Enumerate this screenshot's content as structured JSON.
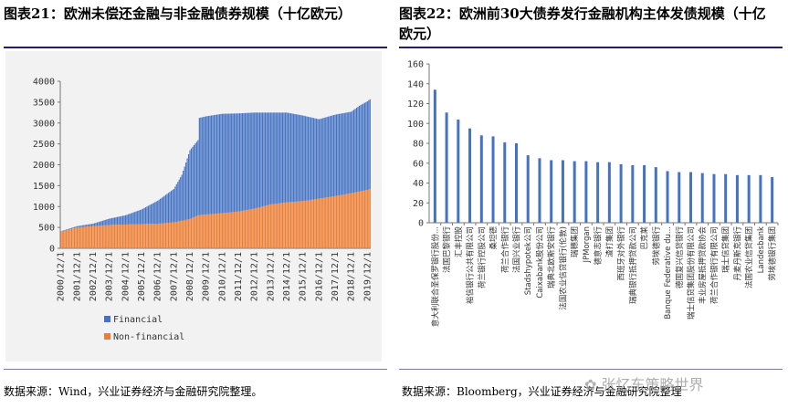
{
  "left_panel": {
    "title": "图表21：欧洲未偿还金融与非金融债券规模（十亿欧元）",
    "source": "数据来源：Wind，兴业证券经济与金融研究院整理。"
  },
  "right_panel": {
    "title": "图表22：欧洲前30大债券发行金融机构主体发债规模（十亿欧元）",
    "source": "数据来源：Bloomberg，兴业证券经济与金融研究院整理"
  },
  "watermark": "张忆东策略世界",
  "colors": {
    "financial": "#4472c4",
    "non_financial": "#ed7d31",
    "bar": "#4472c4",
    "rule": "#1f1f6b"
  },
  "chart_data": [
    {
      "type": "bar",
      "stacked": true,
      "x_tick_labels": [
        "2000/12/1",
        "2001/12/1",
        "2002/12/1",
        "2003/12/1",
        "2004/12/1",
        "2005/12/1",
        "2006/12/1",
        "2007/12/1",
        "2008/12/1",
        "2009/12/1",
        "2010/12/1",
        "2011/12/1",
        "2012/12/1",
        "2013/12/1",
        "2014/12/1",
        "2015/12/1",
        "2016/12/1",
        "2017/12/1",
        "2018/12/1",
        "2019/12/1"
      ],
      "x_start": "2000-12",
      "x_end": "2020-02",
      "ylim": [
        0,
        4000
      ],
      "y_ticks": [
        0,
        500,
        1000,
        1500,
        2000,
        2500,
        3000,
        3500,
        4000
      ],
      "legend": [
        "Financial",
        "Non-financial"
      ],
      "legend_position": "bottom-left",
      "grid": false,
      "series": [
        {
          "name": "Financial",
          "points": [
            [
              "2000-12",
              10
            ],
            [
              "2001-12",
              30
            ],
            [
              "2002-12",
              60
            ],
            [
              "2003-12",
              150
            ],
            [
              "2004-12",
              220
            ],
            [
              "2005-12",
              350
            ],
            [
              "2006-12",
              550
            ],
            [
              "2007-12",
              800
            ],
            [
              "2008-06",
              1100
            ],
            [
              "2008-12",
              1650
            ],
            [
              "2009-06",
              1800
            ],
            [
              "2009-07",
              2330
            ],
            [
              "2009-12",
              2350
            ],
            [
              "2010-12",
              2380
            ],
            [
              "2011-12",
              2350
            ],
            [
              "2012-12",
              2300
            ],
            [
              "2013-12",
              2200
            ],
            [
              "2014-12",
              2150
            ],
            [
              "2015-12",
              2050
            ],
            [
              "2016-12",
              1900
            ],
            [
              "2017-12",
              1950
            ],
            [
              "2018-12",
              1950
            ],
            [
              "2019-06",
              2050
            ],
            [
              "2019-12",
              2120
            ],
            [
              "2020-02",
              2150
            ]
          ]
        },
        {
          "name": "Non-financial",
          "points": [
            [
              "2000-12",
              400
            ],
            [
              "2001-12",
              500
            ],
            [
              "2002-12",
              530
            ],
            [
              "2003-12",
              560
            ],
            [
              "2004-12",
              570
            ],
            [
              "2005-12",
              580
            ],
            [
              "2006-12",
              590
            ],
            [
              "2007-12",
              620
            ],
            [
              "2008-12",
              700
            ],
            [
              "2009-06",
              790
            ],
            [
              "2009-12",
              810
            ],
            [
              "2010-12",
              840
            ],
            [
              "2011-12",
              880
            ],
            [
              "2012-12",
              950
            ],
            [
              "2013-12",
              1050
            ],
            [
              "2014-12",
              1100
            ],
            [
              "2015-12",
              1130
            ],
            [
              "2016-12",
              1190
            ],
            [
              "2017-12",
              1250
            ],
            [
              "2018-12",
              1320
            ],
            [
              "2019-12",
              1400
            ],
            [
              "2020-02",
              1420
            ]
          ]
        }
      ]
    },
    {
      "type": "bar",
      "ylim": [
        0,
        160
      ],
      "y_ticks": [
        0,
        20,
        40,
        60,
        80,
        100,
        120,
        140,
        160
      ],
      "grid": false,
      "categories": [
        "意大利联合圣保罗银行股份...",
        "法国巴黎银行",
        "汇丰控股",
        "裕信银行公共有限公司",
        "荷兰银行控股公司",
        "桑坦德",
        "荷兰合作银行",
        "法国兴业银行",
        "Stadshypotek公司",
        "Caixabank股份公司",
        "瑞典北欧斯安银行",
        "法国农业信贷银行(伦敦)",
        "瑞穗集团",
        "JPMorgan",
        "德意志银行",
        "渣打集团",
        "西班牙对外银行",
        "瑞典银行抵押贷款公司",
        "巴克莱",
        "劳埃德银行",
        "Banque Federative du...",
        "德国复兴信贷银行",
        "瑞士信贷集团股份有限公司",
        "丰业房屋抵押贷款协会",
        "荷兰合作银行有限公司",
        "瑞士信贷集团",
        "丹麦丹斯克银行",
        "法国农业信贷集团",
        "Landesbank",
        "劳埃德银行集团"
      ],
      "values": [
        134,
        111,
        104,
        95,
        88,
        87,
        81,
        80,
        68,
        65,
        63,
        63,
        62,
        62,
        61,
        61,
        59,
        58,
        58,
        56,
        52,
        51,
        51,
        50,
        49,
        49,
        48,
        48,
        48,
        46
      ]
    }
  ]
}
